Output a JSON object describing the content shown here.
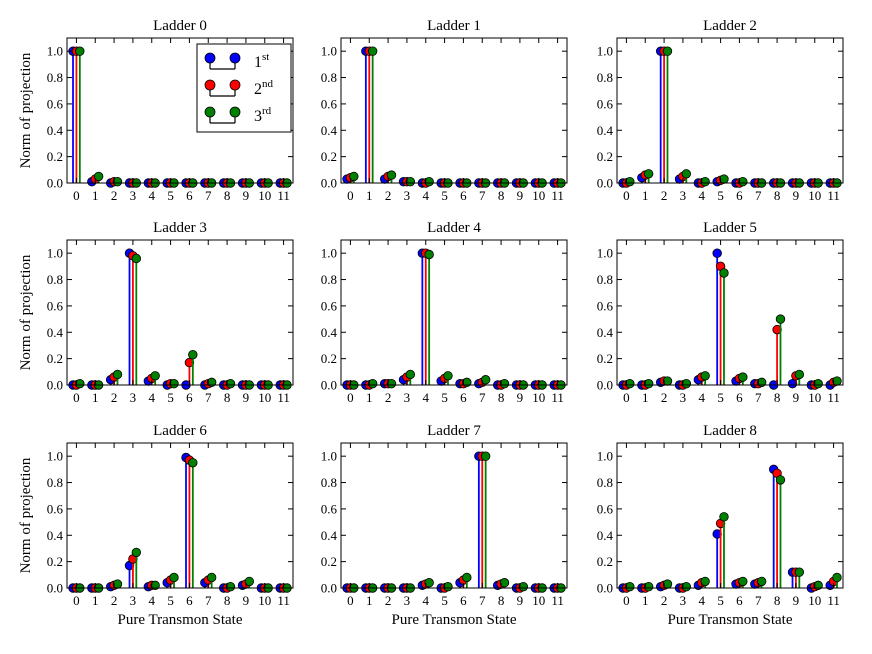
{
  "figure": {
    "ylabel": "Norm of projection",
    "xlabel": "Pure Transmon State",
    "legend": [
      {
        "base": "1",
        "sup": "st",
        "color": "#0000ff"
      },
      {
        "base": "2",
        "sup": "nd",
        "color": "#ff0000"
      },
      {
        "base": "3",
        "sup": "rd",
        "color": "#008000"
      }
    ]
  },
  "chart_data": [
    {
      "type": "stem",
      "title": "Ladder 0",
      "x": [
        0,
        1,
        2,
        3,
        4,
        5,
        6,
        7,
        8,
        9,
        10,
        11
      ],
      "ylim": [
        0,
        1.1
      ],
      "yticks": [
        "0.0",
        "0.2",
        "0.4",
        "0.6",
        "0.8",
        "1.0"
      ],
      "series": [
        {
          "name": "1st",
          "color": "#0000ff",
          "values": [
            1.0,
            0.01,
            0.0,
            0.0,
            0.0,
            0.0,
            0.0,
            0.0,
            0.0,
            0.0,
            0.0,
            0.0
          ]
        },
        {
          "name": "2nd",
          "color": "#ff0000",
          "values": [
            1.0,
            0.03,
            0.01,
            0.0,
            0.0,
            0.0,
            0.0,
            0.0,
            0.0,
            0.0,
            0.0,
            0.0
          ]
        },
        {
          "name": "3rd",
          "color": "#008000",
          "values": [
            1.0,
            0.05,
            0.01,
            0.0,
            0.0,
            0.0,
            0.0,
            0.0,
            0.0,
            0.0,
            0.0,
            0.0
          ]
        }
      ]
    },
    {
      "type": "stem",
      "title": "Ladder 1",
      "x": [
        0,
        1,
        2,
        3,
        4,
        5,
        6,
        7,
        8,
        9,
        10,
        11
      ],
      "ylim": [
        0,
        1.1
      ],
      "yticks": [
        "0.0",
        "0.2",
        "0.4",
        "0.6",
        "0.8",
        "1.0"
      ],
      "series": [
        {
          "name": "1st",
          "color": "#0000ff",
          "values": [
            0.03,
            1.0,
            0.03,
            0.01,
            0.0,
            0.0,
            0.0,
            0.0,
            0.0,
            0.0,
            0.0,
            0.0
          ]
        },
        {
          "name": "2nd",
          "color": "#ff0000",
          "values": [
            0.04,
            1.0,
            0.05,
            0.01,
            0.0,
            0.0,
            0.0,
            0.0,
            0.0,
            0.0,
            0.0,
            0.0
          ]
        },
        {
          "name": "3rd",
          "color": "#008000",
          "values": [
            0.05,
            1.0,
            0.06,
            0.01,
            0.01,
            0.0,
            0.0,
            0.0,
            0.0,
            0.0,
            0.0,
            0.0
          ]
        }
      ]
    },
    {
      "type": "stem",
      "title": "Ladder 2",
      "x": [
        0,
        1,
        2,
        3,
        4,
        5,
        6,
        7,
        8,
        9,
        10,
        11
      ],
      "ylim": [
        0,
        1.1
      ],
      "yticks": [
        "0.0",
        "0.2",
        "0.4",
        "0.6",
        "0.8",
        "1.0"
      ],
      "series": [
        {
          "name": "1st",
          "color": "#0000ff",
          "values": [
            0.0,
            0.04,
            1.0,
            0.03,
            0.0,
            0.01,
            0.0,
            0.0,
            0.0,
            0.0,
            0.0,
            0.0
          ]
        },
        {
          "name": "2nd",
          "color": "#ff0000",
          "values": [
            0.0,
            0.06,
            1.0,
            0.05,
            0.0,
            0.02,
            0.0,
            0.0,
            0.0,
            0.0,
            0.0,
            0.0
          ]
        },
        {
          "name": "3rd",
          "color": "#008000",
          "values": [
            0.01,
            0.07,
            1.0,
            0.07,
            0.01,
            0.03,
            0.01,
            0.0,
            0.0,
            0.0,
            0.0,
            0.0
          ]
        }
      ]
    },
    {
      "type": "stem",
      "title": "Ladder 3",
      "x": [
        0,
        1,
        2,
        3,
        4,
        5,
        6,
        7,
        8,
        9,
        10,
        11
      ],
      "ylim": [
        0,
        1.1
      ],
      "yticks": [
        "0.0",
        "0.2",
        "0.4",
        "0.6",
        "0.8",
        "1.0"
      ],
      "series": [
        {
          "name": "1st",
          "color": "#0000ff",
          "values": [
            0.0,
            0.0,
            0.04,
            1.0,
            0.03,
            0.0,
            0.0,
            0.0,
            0.0,
            0.0,
            0.0,
            0.0
          ]
        },
        {
          "name": "2nd",
          "color": "#ff0000",
          "values": [
            0.0,
            0.0,
            0.06,
            0.98,
            0.05,
            0.01,
            0.17,
            0.01,
            0.0,
            0.0,
            0.0,
            0.0
          ]
        },
        {
          "name": "3rd",
          "color": "#008000",
          "values": [
            0.01,
            0.0,
            0.08,
            0.96,
            0.07,
            0.01,
            0.23,
            0.02,
            0.01,
            0.0,
            0.0,
            0.0
          ]
        }
      ]
    },
    {
      "type": "stem",
      "title": "Ladder 4",
      "x": [
        0,
        1,
        2,
        3,
        4,
        5,
        6,
        7,
        8,
        9,
        10,
        11
      ],
      "ylim": [
        0,
        1.1
      ],
      "yticks": [
        "0.0",
        "0.2",
        "0.4",
        "0.6",
        "0.8",
        "1.0"
      ],
      "series": [
        {
          "name": "1st",
          "color": "#0000ff",
          "values": [
            0.0,
            0.0,
            0.01,
            0.04,
            1.0,
            0.03,
            0.01,
            0.01,
            0.0,
            0.0,
            0.0,
            0.0
          ]
        },
        {
          "name": "2nd",
          "color": "#ff0000",
          "values": [
            0.0,
            0.0,
            0.01,
            0.06,
            1.0,
            0.05,
            0.01,
            0.02,
            0.0,
            0.0,
            0.0,
            0.0
          ]
        },
        {
          "name": "3rd",
          "color": "#008000",
          "values": [
            0.0,
            0.01,
            0.01,
            0.08,
            0.99,
            0.07,
            0.02,
            0.04,
            0.01,
            0.0,
            0.0,
            0.0
          ]
        }
      ]
    },
    {
      "type": "stem",
      "title": "Ladder 5",
      "x": [
        0,
        1,
        2,
        3,
        4,
        5,
        6,
        7,
        8,
        9,
        10,
        11
      ],
      "ylim": [
        0,
        1.1
      ],
      "yticks": [
        "0.0",
        "0.2",
        "0.4",
        "0.6",
        "0.8",
        "1.0"
      ],
      "series": [
        {
          "name": "1st",
          "color": "#0000ff",
          "values": [
            0.0,
            0.0,
            0.02,
            0.0,
            0.04,
            1.0,
            0.03,
            0.01,
            0.0,
            0.01,
            0.0,
            0.0
          ]
        },
        {
          "name": "2nd",
          "color": "#ff0000",
          "values": [
            0.0,
            0.0,
            0.03,
            0.0,
            0.06,
            0.9,
            0.05,
            0.01,
            0.42,
            0.07,
            0.0,
            0.02
          ]
        },
        {
          "name": "3rd",
          "color": "#008000",
          "values": [
            0.01,
            0.01,
            0.03,
            0.01,
            0.07,
            0.85,
            0.06,
            0.02,
            0.5,
            0.08,
            0.01,
            0.03
          ]
        }
      ]
    },
    {
      "type": "stem",
      "title": "Ladder 6",
      "x": [
        0,
        1,
        2,
        3,
        4,
        5,
        6,
        7,
        8,
        9,
        10,
        11
      ],
      "ylim": [
        0,
        1.1
      ],
      "yticks": [
        "0.0",
        "0.2",
        "0.4",
        "0.6",
        "0.8",
        "1.0"
      ],
      "series": [
        {
          "name": "1st",
          "color": "#0000ff",
          "values": [
            0.0,
            0.0,
            0.01,
            0.17,
            0.01,
            0.04,
            0.99,
            0.04,
            0.0,
            0.02,
            0.0,
            0.0
          ]
        },
        {
          "name": "2nd",
          "color": "#ff0000",
          "values": [
            0.0,
            0.0,
            0.02,
            0.22,
            0.02,
            0.06,
            0.97,
            0.06,
            0.0,
            0.03,
            0.0,
            0.0
          ]
        },
        {
          "name": "3rd",
          "color": "#008000",
          "values": [
            0.0,
            0.0,
            0.03,
            0.27,
            0.02,
            0.08,
            0.95,
            0.08,
            0.01,
            0.05,
            0.0,
            0.0
          ]
        }
      ]
    },
    {
      "type": "stem",
      "title": "Ladder 7",
      "x": [
        0,
        1,
        2,
        3,
        4,
        5,
        6,
        7,
        8,
        9,
        10,
        11
      ],
      "ylim": [
        0,
        1.1
      ],
      "yticks": [
        "0.0",
        "0.2",
        "0.4",
        "0.6",
        "0.8",
        "1.0"
      ],
      "series": [
        {
          "name": "1st",
          "color": "#0000ff",
          "values": [
            0.0,
            0.0,
            0.0,
            0.0,
            0.02,
            0.0,
            0.04,
            1.0,
            0.02,
            0.0,
            0.0,
            0.0
          ]
        },
        {
          "name": "2nd",
          "color": "#ff0000",
          "values": [
            0.0,
            0.0,
            0.0,
            0.0,
            0.03,
            0.0,
            0.06,
            1.0,
            0.03,
            0.0,
            0.0,
            0.0
          ]
        },
        {
          "name": "3rd",
          "color": "#008000",
          "values": [
            0.0,
            0.0,
            0.0,
            0.0,
            0.04,
            0.01,
            0.08,
            1.0,
            0.04,
            0.01,
            0.0,
            0.0
          ]
        }
      ]
    },
    {
      "type": "stem",
      "title": "Ladder 8",
      "x": [
        0,
        1,
        2,
        3,
        4,
        5,
        6,
        7,
        8,
        9,
        10,
        11
      ],
      "ylim": [
        0,
        1.1
      ],
      "yticks": [
        "0.0",
        "0.2",
        "0.4",
        "0.6",
        "0.8",
        "1.0"
      ],
      "series": [
        {
          "name": "1st",
          "color": "#0000ff",
          "values": [
            0.0,
            0.0,
            0.01,
            0.0,
            0.02,
            0.41,
            0.03,
            0.03,
            0.9,
            0.12,
            0.0,
            0.02
          ]
        },
        {
          "name": "2nd",
          "color": "#ff0000",
          "values": [
            0.0,
            0.0,
            0.02,
            0.0,
            0.04,
            0.49,
            0.04,
            0.04,
            0.87,
            0.12,
            0.01,
            0.05
          ]
        },
        {
          "name": "3rd",
          "color": "#008000",
          "values": [
            0.01,
            0.01,
            0.03,
            0.01,
            0.05,
            0.54,
            0.05,
            0.05,
            0.82,
            0.12,
            0.02,
            0.08
          ]
        }
      ]
    }
  ]
}
